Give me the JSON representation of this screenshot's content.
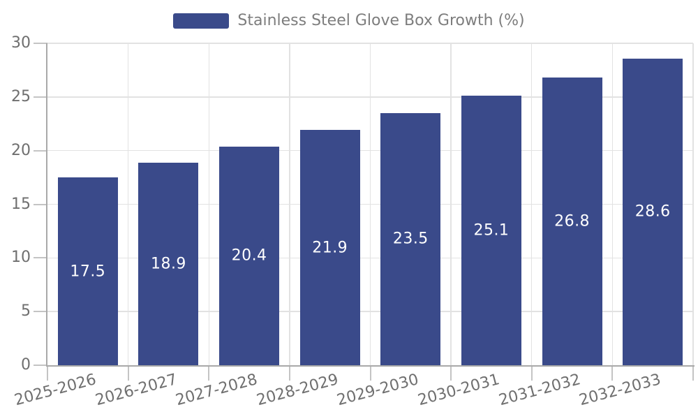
{
  "chart_data": {
    "type": "bar",
    "title": "",
    "legend_label": "Stainless Steel Glove Box Growth (%)",
    "legend_position": "top-center",
    "categories": [
      "2025-2026",
      "2026-2027",
      "2027-2028",
      "2028-2029",
      "2029-2030",
      "2030-2031",
      "2031-2032",
      "2032-2033"
    ],
    "values": [
      17.5,
      18.9,
      20.4,
      21.9,
      23.5,
      25.1,
      26.8,
      28.6
    ],
    "value_labels": [
      "17.5",
      "18.9",
      "20.4",
      "21.9",
      "23.5",
      "25.1",
      "26.8",
      "28.6"
    ],
    "xlabel": "",
    "ylabel": "",
    "ylim": [
      0,
      30
    ],
    "yticks": [
      0,
      5,
      10,
      15,
      20,
      25,
      30
    ],
    "grid": true,
    "colors": {
      "bar": "#3A4A8A",
      "bar_value_text": "#ffffff",
      "axis_line": "#a9a9a9",
      "gridline": "#e2e2e2",
      "tick_mark": "#c4c4c4",
      "tick_text": "#6f6f6f",
      "legend_text": "#7d7d7d",
      "background": "#ffffff"
    }
  }
}
